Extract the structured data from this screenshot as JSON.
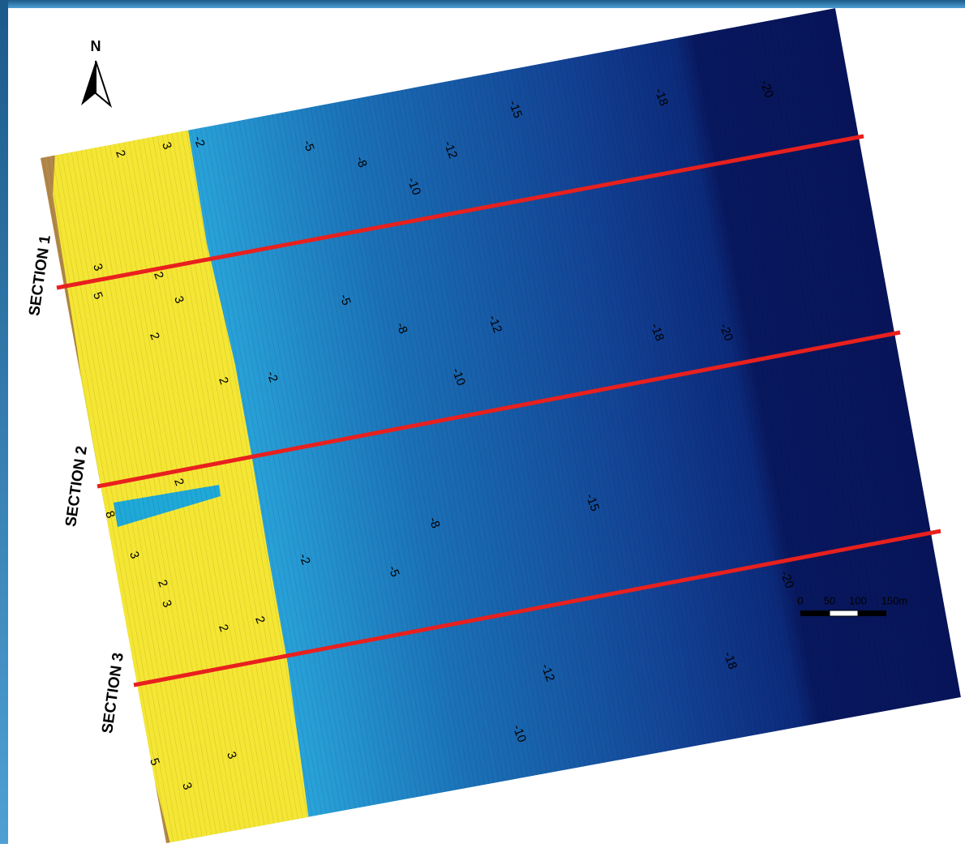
{
  "north": "N",
  "sections": [
    "SECTION 1",
    "SECTION 2",
    "SECTION 3"
  ],
  "contour_labels": [
    "2",
    "3",
    "-2",
    "-5",
    "-8",
    "-12",
    "-10",
    "-15",
    "-18",
    "-20",
    "3",
    "5",
    "2",
    "3",
    "2",
    "-5",
    "-8",
    "-12",
    "-18",
    "-20",
    "2",
    "-2",
    "-10",
    "2",
    "8",
    "-8",
    "-15",
    "3",
    "-2",
    "-5",
    "2",
    "3",
    "2",
    "2",
    "-20",
    "-12",
    "-18",
    "-10",
    "5",
    "3",
    "3"
  ],
  "scale_bar": {
    "labels": [
      "0",
      "50",
      "100",
      "150m"
    ]
  }
}
